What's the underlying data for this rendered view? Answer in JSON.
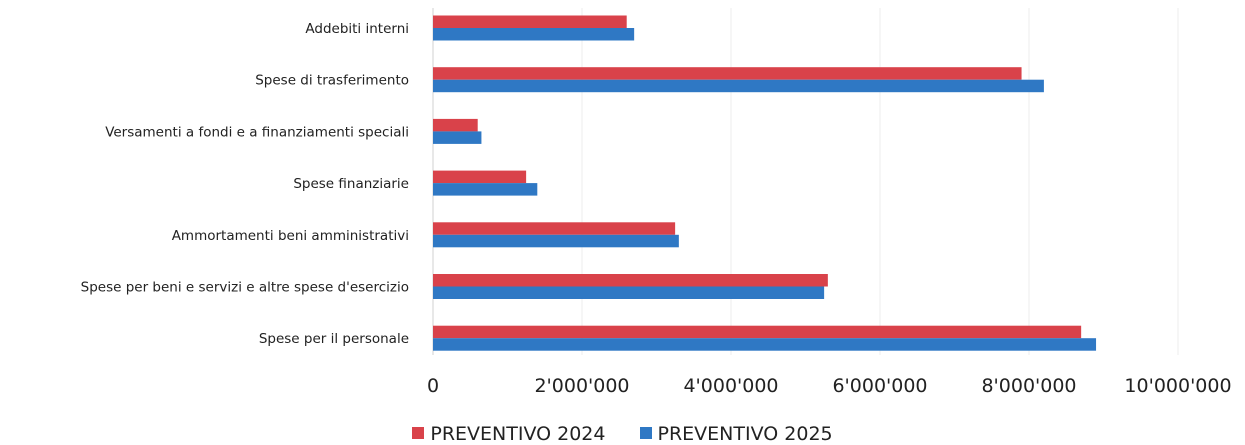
{
  "chart_data": {
    "type": "bar",
    "orientation": "horizontal",
    "categories": [
      "Addebiti interni",
      "Spese di trasferimento",
      "Versamenti a fondi e a finanziamenti speciali",
      "Spese finanziarie",
      "Ammortamenti beni amministrativi",
      "Spese per beni e servizi e altre spese d'esercizio",
      "Spese per il personale"
    ],
    "series": [
      {
        "name": "PREVENTIVO 2024",
        "color": "#d9424a",
        "values": [
          2600000,
          7900000,
          600000,
          1250000,
          3250000,
          5300000,
          8700000
        ]
      },
      {
        "name": "PREVENTIVO 2025",
        "color": "#2f78c4",
        "values": [
          2700000,
          8200000,
          650000,
          1400000,
          3300000,
          5250000,
          8900000
        ]
      }
    ],
    "xlim": [
      0,
      10000000
    ],
    "x_ticks": [
      0,
      2000000,
      4000000,
      6000000,
      8000000,
      10000000
    ],
    "x_tick_labels": [
      "0",
      "2'000'000",
      "4'000'000",
      "6'000'000",
      "8'000'000",
      "10'000'000"
    ],
    "grid": true,
    "legend_position": "bottom",
    "title": "",
    "xlabel": "",
    "ylabel": ""
  }
}
